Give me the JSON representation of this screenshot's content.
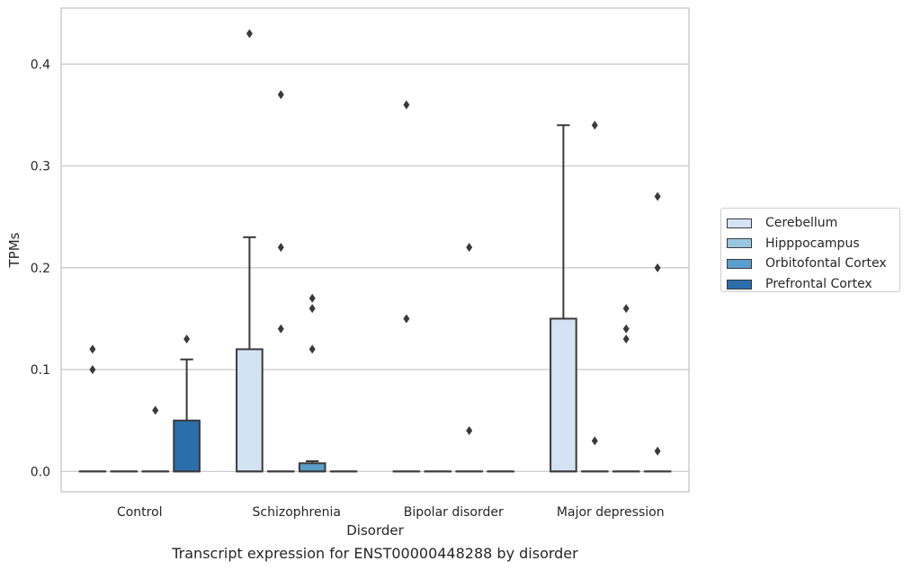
{
  "caption": "Transcript expression for ENST00000448288 by disorder",
  "colors": {
    "Cerebellum": "#d3e3f3",
    "Hipppocampus": "#9ac7e0",
    "Orbitofontal Cortex": "#5a9ecc",
    "Prefrontal Cortex": "#2a6eab",
    "grid": "#cccccc",
    "frame": "#cccccc",
    "whisker": "#3a3a3a"
  },
  "chart_data": {
    "type": "box",
    "title": "",
    "xlabel": "Disorder",
    "ylabel": "TPMs",
    "ylim": [
      -0.02,
      0.455
    ],
    "yticks": [
      0.0,
      0.1,
      0.2,
      0.3,
      0.4
    ],
    "ytick_labels": [
      "0.0",
      "0.1",
      "0.2",
      "0.3",
      "0.4"
    ],
    "grid": true,
    "legend_position": "right",
    "categories": [
      "Control",
      "Schizophrenia",
      "Bipolar disorder",
      "Major depression"
    ],
    "series": [
      {
        "name": "Cerebellum",
        "boxes": [
          {
            "q1": 0,
            "median": 0,
            "q3": 0,
            "whislo": 0,
            "whishi": 0,
            "fliers": [
              0.12,
              0.1
            ]
          },
          {
            "q1": 0,
            "median": 0,
            "q3": 0.12,
            "whislo": 0,
            "whishi": 0.23,
            "fliers": [
              0.43
            ]
          },
          {
            "q1": 0,
            "median": 0,
            "q3": 0,
            "whislo": 0,
            "whishi": 0,
            "fliers": [
              0.36,
              0.15
            ]
          },
          {
            "q1": 0,
            "median": 0,
            "q3": 0.15,
            "whislo": 0,
            "whishi": 0.34,
            "fliers": []
          }
        ]
      },
      {
        "name": "Hipppocampus",
        "boxes": [
          {
            "q1": 0,
            "median": 0,
            "q3": 0,
            "whislo": 0,
            "whishi": 0,
            "fliers": []
          },
          {
            "q1": 0,
            "median": 0,
            "q3": 0,
            "whislo": 0,
            "whishi": 0,
            "fliers": [
              0.37,
              0.22,
              0.14
            ]
          },
          {
            "q1": 0,
            "median": 0,
            "q3": 0,
            "whislo": 0,
            "whishi": 0,
            "fliers": []
          },
          {
            "q1": 0,
            "median": 0,
            "q3": 0,
            "whislo": 0,
            "whishi": 0,
            "fliers": [
              0.34,
              0.03
            ]
          }
        ]
      },
      {
        "name": "Orbitofontal Cortex",
        "boxes": [
          {
            "q1": 0,
            "median": 0,
            "q3": 0,
            "whislo": 0,
            "whishi": 0,
            "fliers": [
              0.06
            ]
          },
          {
            "q1": 0,
            "median": 0,
            "q3": 0.008,
            "whislo": 0,
            "whishi": 0.01,
            "fliers": [
              0.17,
              0.16,
              0.12
            ]
          },
          {
            "q1": 0,
            "median": 0,
            "q3": 0,
            "whislo": 0,
            "whishi": 0,
            "fliers": [
              0.22,
              0.04
            ]
          },
          {
            "q1": 0,
            "median": 0,
            "q3": 0,
            "whislo": 0,
            "whishi": 0,
            "fliers": [
              0.16,
              0.14,
              0.13
            ]
          }
        ]
      },
      {
        "name": "Prefrontal Cortex",
        "boxes": [
          {
            "q1": 0,
            "median": 0,
            "q3": 0.05,
            "whislo": 0,
            "whishi": 0.11,
            "fliers": [
              0.13
            ]
          },
          {
            "q1": 0,
            "median": 0,
            "q3": 0,
            "whislo": 0,
            "whishi": 0,
            "fliers": []
          },
          {
            "q1": 0,
            "median": 0,
            "q3": 0,
            "whislo": 0,
            "whishi": 0,
            "fliers": []
          },
          {
            "q1": 0,
            "median": 0,
            "q3": 0,
            "whislo": 0,
            "whishi": 0,
            "fliers": [
              0.27,
              0.2,
              0.02
            ]
          }
        ]
      }
    ]
  }
}
